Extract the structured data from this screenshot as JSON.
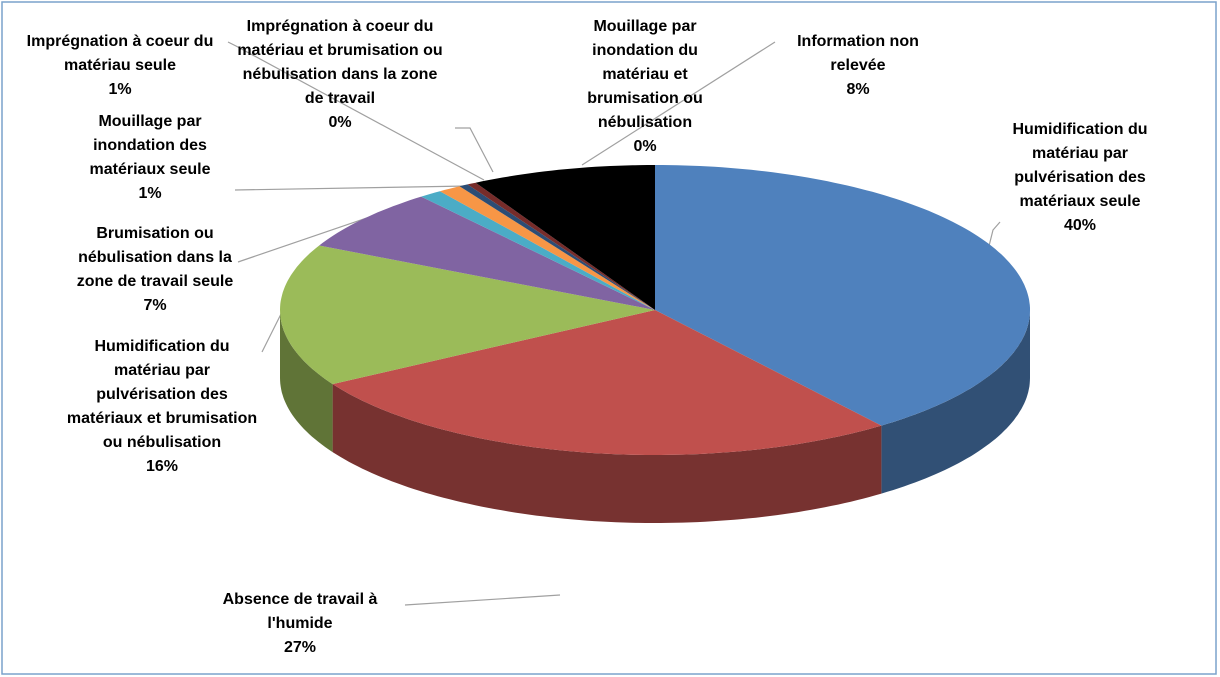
{
  "chart_data": {
    "type": "pie3d",
    "categories": [
      "Humidification du matériau par pulvérisation des matériaux seule",
      "Absence de travail à l'humide",
      "Humidification du matériau par pulvérisation des matériaux et brumisation ou nébulisation",
      "Brumisation ou nébulisation dans la zone de travail seule",
      "Mouillage par inondation des matériaux seule",
      "Imprégnation à coeur du matériau seule",
      "Imprégnation à coeur du matériau et brumisation ou nébulisation dans la zone de travail",
      "Mouillage par inondation du matériau et brumisation ou nébulisation",
      "Information non relevée"
    ],
    "values": [
      40,
      27,
      16,
      7,
      1,
      1,
      0.4,
      0.4,
      8
    ],
    "value_labels": [
      "40%",
      "27%",
      "16%",
      "7%",
      "1%",
      "1%",
      "0%",
      "0%",
      "8%"
    ],
    "colors": [
      "#4f81bd",
      "#c0504d",
      "#9bbb59",
      "#8064a2",
      "#4bacc6",
      "#f79646",
      "#2c4d75",
      "#772c2a",
      "#000000"
    ]
  }
}
